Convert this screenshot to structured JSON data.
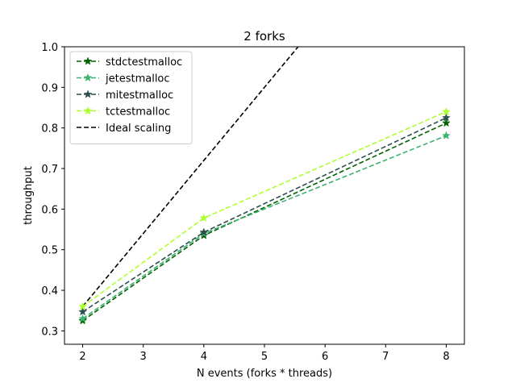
{
  "chart_data": {
    "type": "line",
    "title": "2 forks",
    "xlabel": "N events (forks * threads)",
    "ylabel": "throughput",
    "xlim": [
      1.7,
      8.3
    ],
    "ylim": [
      0.267,
      1.0
    ],
    "xticks": [
      2,
      3,
      4,
      5,
      6,
      7,
      8
    ],
    "yticks": [
      0.3,
      0.4,
      0.5,
      0.6,
      0.7,
      0.8,
      0.9,
      1.0
    ],
    "xtick_labels": [
      "2",
      "3",
      "4",
      "5",
      "6",
      "7",
      "8"
    ],
    "ytick_labels": [
      "0.3",
      "0.4",
      "0.5",
      "0.6",
      "0.7",
      "0.8",
      "0.9",
      "1.0"
    ],
    "x": [
      2,
      4,
      8
    ],
    "series": [
      {
        "name": "stdctestmalloc",
        "values": [
          0.325,
          0.535,
          0.812
        ],
        "color": "#006400",
        "marker": "star",
        "linestyle": "dashed"
      },
      {
        "name": "jetestmalloc",
        "values": [
          0.33,
          0.54,
          0.781
        ],
        "color": "#3cb371",
        "marker": "star",
        "linestyle": "dashed"
      },
      {
        "name": "mitestmalloc",
        "values": [
          0.347,
          0.543,
          0.825
        ],
        "color": "#2f4f4f",
        "marker": "star",
        "linestyle": "dashed"
      },
      {
        "name": "tctestmalloc",
        "values": [
          0.36,
          0.578,
          0.84
        ],
        "color": "#adff2f",
        "marker": "star",
        "linestyle": "dashed"
      }
    ],
    "reference_line": {
      "name": "Ideal scaling",
      "x": [
        2,
        8
      ],
      "values": [
        0.36,
        1.44
      ],
      "color": "#000000",
      "linestyle": "dashed"
    },
    "legend_position": "top-left",
    "grid": false
  }
}
